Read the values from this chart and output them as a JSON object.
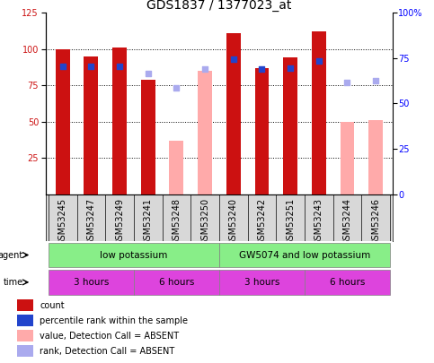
{
  "title": "GDS1837 / 1377023_at",
  "samples": [
    "GSM53245",
    "GSM53247",
    "GSM53249",
    "GSM53241",
    "GSM53248",
    "GSM53250",
    "GSM53240",
    "GSM53242",
    "GSM53251",
    "GSM53243",
    "GSM53244",
    "GSM53246"
  ],
  "count_values": [
    100,
    95,
    101,
    79,
    null,
    null,
    111,
    87,
    94,
    112,
    null,
    null
  ],
  "rank_values": [
    88,
    88,
    88,
    null,
    null,
    null,
    93,
    86,
    87,
    92,
    null,
    null
  ],
  "absent_value_bars": [
    null,
    null,
    null,
    null,
    37,
    85,
    null,
    null,
    null,
    null,
    50,
    51
  ],
  "absent_rank_dots": [
    null,
    null,
    null,
    83,
    73,
    86,
    null,
    null,
    null,
    null,
    77,
    78
  ],
  "left_ylim": [
    0,
    125
  ],
  "right_ylim": [
    0,
    100
  ],
  "left_yticks": [
    25,
    50,
    75,
    100,
    125
  ],
  "right_yticks": [
    0,
    25,
    50,
    75,
    100
  ],
  "right_yticklabels": [
    "0",
    "25",
    "50",
    "75",
    "100%"
  ],
  "bar_color_count": "#cc1111",
  "bar_color_absent": "#ffaaaa",
  "dot_color_rank": "#2244cc",
  "dot_color_absent_rank": "#aaaaee",
  "agent_labels": [
    "low potassium",
    "GW5074 and low potassium"
  ],
  "agent_color": "#88ee88",
  "time_labels": [
    "3 hours",
    "6 hours",
    "3 hours",
    "6 hours"
  ],
  "time_color": "#dd44dd",
  "legend_items": [
    {
      "label": "count",
      "color": "#cc1111"
    },
    {
      "label": "percentile rank within the sample",
      "color": "#2244cc"
    },
    {
      "label": "value, Detection Call = ABSENT",
      "color": "#ffaaaa"
    },
    {
      "label": "rank, Detection Call = ABSENT",
      "color": "#aaaaee"
    }
  ],
  "background_color": "#ffffff",
  "title_fontsize": 10,
  "tick_fontsize": 7,
  "label_fontsize": 8,
  "bar_width": 0.5
}
